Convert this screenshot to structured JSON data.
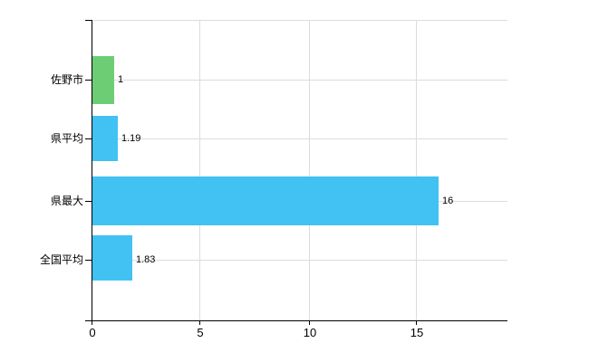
{
  "chart_data": {
    "type": "bar",
    "orientation": "horizontal",
    "title": "",
    "xlabel": "",
    "ylabel": "",
    "categories": [
      "佐野市",
      "県平均",
      "県最大",
      "全国平均"
    ],
    "values": [
      1,
      1.19,
      16,
      1.83
    ],
    "value_labels": [
      "1",
      "1.19",
      "16",
      "1.83"
    ],
    "bar_colors": [
      "#6dcd75",
      "#41c2f3",
      "#41c2f3",
      "#41c2f3"
    ],
    "xticks": [
      0,
      5,
      10,
      15
    ],
    "xtick_labels": [
      "0",
      "5",
      "10",
      "15"
    ],
    "xlim": [
      0,
      19.2
    ],
    "grid": true,
    "legend": false
  },
  "colors": {
    "bar_green": "#6dcd75",
    "bar_blue": "#41c2f3",
    "gridline": "#dcdcdc",
    "axis": "#000000",
    "background": "#ffffff"
  }
}
